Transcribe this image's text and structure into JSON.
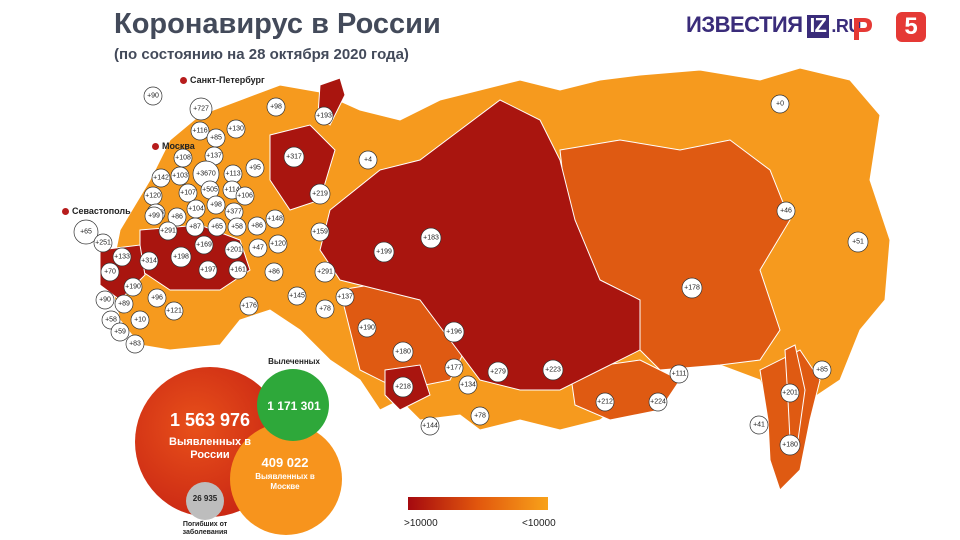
{
  "header": {
    "title": "Коронавирус в России",
    "subtitle": "(по состоянию на 28 октября 2020 года)"
  },
  "logos": {
    "izvestia_text": "ИЗВЕСТИЯ",
    "iz_box": "IZ",
    "iz_domain": ".RU",
    "channel_five": "5"
  },
  "cities": {
    "spb": "Санкт-Петербург",
    "moscow": "Москва",
    "sevastopol": "Севастополь"
  },
  "stats": {
    "total_value": "1 563 976",
    "total_label": "Выявленных в России",
    "recovered_heading": "Вылеченных",
    "recovered_value": "1 171 301",
    "moscow_value": "409 022",
    "moscow_label": "Выявленных в Москве",
    "deaths_value": "26 935",
    "deaths_label": "Погибших от заболевания"
  },
  "legend": {
    "high_label": ">10000",
    "low_label": "<10000",
    "high_color": "#a5090f",
    "mid_color": "#e2570d",
    "low_color": "#f8a21a"
  },
  "markers": [
    {
      "label": "+90"
    },
    {
      "label": "+727"
    },
    {
      "label": "+98"
    },
    {
      "label": "+193"
    },
    {
      "label": "+116"
    },
    {
      "label": "+130"
    },
    {
      "label": "+85"
    },
    {
      "label": "+137"
    },
    {
      "label": "+108"
    },
    {
      "label": "+317"
    },
    {
      "label": "+4"
    },
    {
      "label": "+0"
    },
    {
      "label": "+142"
    },
    {
      "label": "+103"
    },
    {
      "label": "+3670"
    },
    {
      "label": "+113"
    },
    {
      "label": "+95"
    },
    {
      "label": "+120"
    },
    {
      "label": "+107"
    },
    {
      "label": "+505"
    },
    {
      "label": "+114"
    },
    {
      "label": "+106"
    },
    {
      "label": "+219"
    },
    {
      "label": "+128"
    },
    {
      "label": "+104"
    },
    {
      "label": "+98"
    },
    {
      "label": "+99"
    },
    {
      "label": "+377"
    },
    {
      "label": "+86"
    },
    {
      "label": "+87"
    },
    {
      "label": "+65"
    },
    {
      "label": "+58"
    },
    {
      "label": "+86"
    },
    {
      "label": "+148"
    },
    {
      "label": "+291"
    },
    {
      "label": "+169"
    },
    {
      "label": "+201"
    },
    {
      "label": "+47"
    },
    {
      "label": "+120"
    },
    {
      "label": "+159"
    },
    {
      "label": "+65"
    },
    {
      "label": "+251"
    },
    {
      "label": "+133"
    },
    {
      "label": "+314"
    },
    {
      "label": "+198"
    },
    {
      "label": "+197"
    },
    {
      "label": "+161"
    },
    {
      "label": "+86"
    },
    {
      "label": "+291"
    },
    {
      "label": "+183"
    },
    {
      "label": "+199"
    },
    {
      "label": "+46"
    },
    {
      "label": "+51"
    },
    {
      "label": "+70"
    },
    {
      "label": "+190"
    },
    {
      "label": "+90"
    },
    {
      "label": "+89"
    },
    {
      "label": "+96"
    },
    {
      "label": "+121"
    },
    {
      "label": "+176"
    },
    {
      "label": "+145"
    },
    {
      "label": "+137"
    },
    {
      "label": "+58"
    },
    {
      "label": "+10"
    },
    {
      "label": "+59"
    },
    {
      "label": "+78"
    },
    {
      "label": "+178"
    },
    {
      "label": "+83"
    },
    {
      "label": "+190"
    },
    {
      "label": "+196"
    },
    {
      "label": "+180"
    },
    {
      "label": "+177"
    },
    {
      "label": "+279"
    },
    {
      "label": "+223"
    },
    {
      "label": "+111"
    },
    {
      "label": "+85"
    },
    {
      "label": "+218"
    },
    {
      "label": "+134"
    },
    {
      "label": "+212"
    },
    {
      "label": "+224"
    },
    {
      "label": "+201"
    },
    {
      "label": "+144"
    },
    {
      "label": "+78"
    },
    {
      "label": "+41"
    },
    {
      "label": "+180"
    }
  ]
}
